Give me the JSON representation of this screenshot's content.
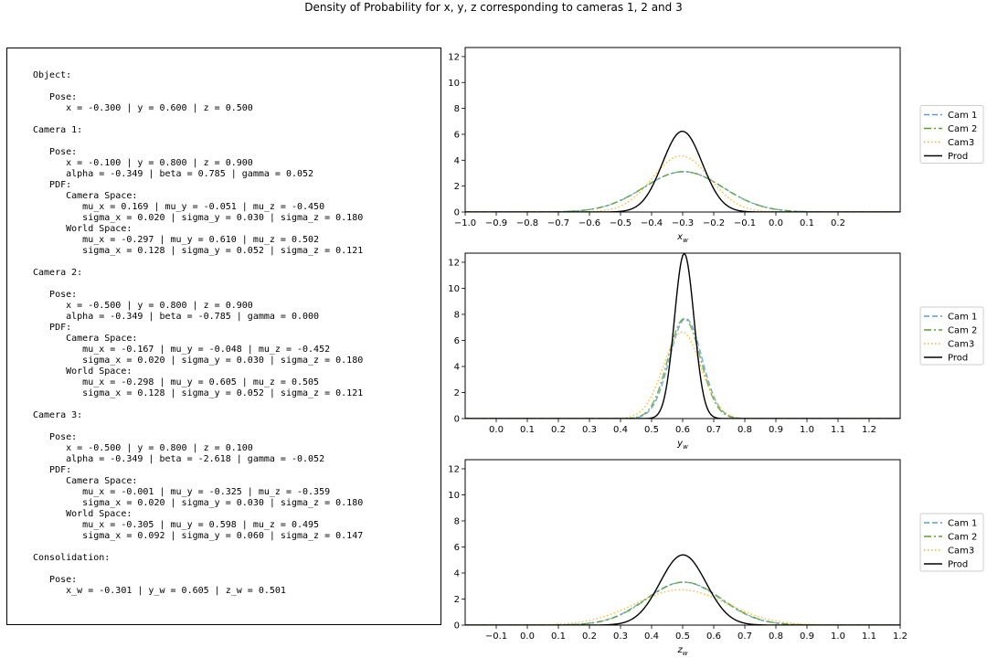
{
  "figure_title": "Density of Probability for x, y, z corresponding to cameras 1, 2 and 3",
  "info_lines": [
    "Object:",
    "",
    "   Pose:",
    "      x = -0.300 | y = 0.600 | z = 0.500",
    "",
    "Camera 1:",
    "",
    "   Pose:",
    "      x = -0.100 | y = 0.800 | z = 0.900",
    "      alpha = -0.349 | beta = 0.785 | gamma = 0.052",
    "   PDF:",
    "      Camera Space:",
    "         mu_x = 0.169 | mu_y = -0.051 | mu_z = -0.450",
    "         sigma_x = 0.020 | sigma_y = 0.030 | sigma_z = 0.180",
    "      World Space:",
    "         mu_x = -0.297 | mu_y = 0.610 | mu_z = 0.502",
    "         sigma_x = 0.128 | sigma_y = 0.052 | sigma_z = 0.121",
    "",
    "Camera 2:",
    "",
    "   Pose:",
    "      x = -0.500 | y = 0.800 | z = 0.900",
    "      alpha = -0.349 | beta = -0.785 | gamma = 0.000",
    "   PDF:",
    "      Camera Space:",
    "         mu_x = -0.167 | mu_y = -0.048 | mu_z = -0.452",
    "         sigma_x = 0.020 | sigma_y = 0.030 | sigma_z = 0.180",
    "      World Space:",
    "         mu_x = -0.298 | mu_y = 0.605 | mu_z = 0.505",
    "         sigma_x = 0.128 | sigma_y = 0.052 | sigma_z = 0.121",
    "",
    "Camera 3:",
    "",
    "   Pose:",
    "      x = -0.500 | y = 0.800 | z = 0.100",
    "      alpha = -0.349 | beta = -2.618 | gamma = -0.052",
    "   PDF:",
    "      Camera Space:",
    "         mu_x = -0.001 | mu_y = -0.325 | mu_z = -0.359",
    "         sigma_x = 0.020 | sigma_y = 0.030 | sigma_z = 0.180",
    "      World Space:",
    "         mu_x = -0.305 | mu_y = 0.598 | mu_z = 0.495",
    "         sigma_x = 0.092 | sigma_y = 0.060 | sigma_z = 0.147",
    "",
    "Consolidation:",
    "",
    "   Pose:",
    "      x_w = -0.301 | y_w = 0.605 | z_w = 0.501"
  ],
  "series_styles": [
    {
      "name": "Cam 1",
      "color": "#5b9bd5",
      "dash": "dashed"
    },
    {
      "name": "Cam 2",
      "color": "#5aa02c",
      "dash": "dashdot"
    },
    {
      "name": "Cam3",
      "color": "#ffb000",
      "dash": "dotted"
    },
    {
      "name": "Prod",
      "color": "#000000",
      "dash": "solid"
    }
  ],
  "chart_data": [
    {
      "type": "line",
      "xlabel_base": "x",
      "xlabel_sub": "w",
      "xlim": [
        -1.0,
        0.4
      ],
      "ylim": [
        0,
        12.7
      ],
      "xticks": [
        -1.0,
        -0.9,
        -0.8,
        -0.7,
        -0.6,
        -0.5,
        -0.4,
        -0.3,
        -0.2,
        -0.1,
        0.0,
        0.1,
        0.2
      ],
      "yticks": [
        0,
        2,
        4,
        6,
        8,
        10,
        12
      ],
      "legend": [
        "Cam 1",
        "Cam 2",
        "Cam3",
        "Prod"
      ],
      "series": [
        {
          "name": "Cam 1",
          "mu": -0.297,
          "sigma": 0.128
        },
        {
          "name": "Cam 2",
          "mu": -0.298,
          "sigma": 0.128
        },
        {
          "name": "Cam3",
          "mu": -0.305,
          "sigma": 0.092
        },
        {
          "name": "Prod",
          "mu": -0.301,
          "sigma": 0.064
        }
      ]
    },
    {
      "type": "line",
      "xlabel_base": "y",
      "xlabel_sub": "w",
      "xlim": [
        -0.1,
        1.3
      ],
      "ylim": [
        0,
        12.7
      ],
      "xticks": [
        0.0,
        0.1,
        0.2,
        0.3,
        0.4,
        0.5,
        0.6,
        0.7,
        0.8,
        0.9,
        1.0,
        1.1,
        1.2
      ],
      "yticks": [
        0,
        2,
        4,
        6,
        8,
        10,
        12
      ],
      "legend": [
        "Cam 1",
        "Cam 2",
        "Cam3",
        "Prod"
      ],
      "series": [
        {
          "name": "Cam 1",
          "mu": 0.61,
          "sigma": 0.052
        },
        {
          "name": "Cam 2",
          "mu": 0.605,
          "sigma": 0.052
        },
        {
          "name": "Cam3",
          "mu": 0.598,
          "sigma": 0.06
        },
        {
          "name": "Prod",
          "mu": 0.605,
          "sigma": 0.0315
        }
      ]
    },
    {
      "type": "line",
      "xlabel_base": "z",
      "xlabel_sub": "w",
      "xlim": [
        -0.2,
        1.2
      ],
      "ylim": [
        0,
        12.7
      ],
      "xticks": [
        -0.1,
        0.0,
        0.1,
        0.2,
        0.3,
        0.4,
        0.5,
        0.6,
        0.7,
        0.8,
        0.9,
        1.0,
        1.1,
        1.2
      ],
      "yticks": [
        0,
        2,
        4,
        6,
        8,
        10,
        12
      ],
      "legend": [
        "Cam 1",
        "Cam 2",
        "Cam3",
        "Prod"
      ],
      "series": [
        {
          "name": "Cam 1",
          "mu": 0.502,
          "sigma": 0.121
        },
        {
          "name": "Cam 2",
          "mu": 0.505,
          "sigma": 0.121
        },
        {
          "name": "Cam3",
          "mu": 0.495,
          "sigma": 0.147
        },
        {
          "name": "Prod",
          "mu": 0.501,
          "sigma": 0.074
        }
      ]
    }
  ]
}
